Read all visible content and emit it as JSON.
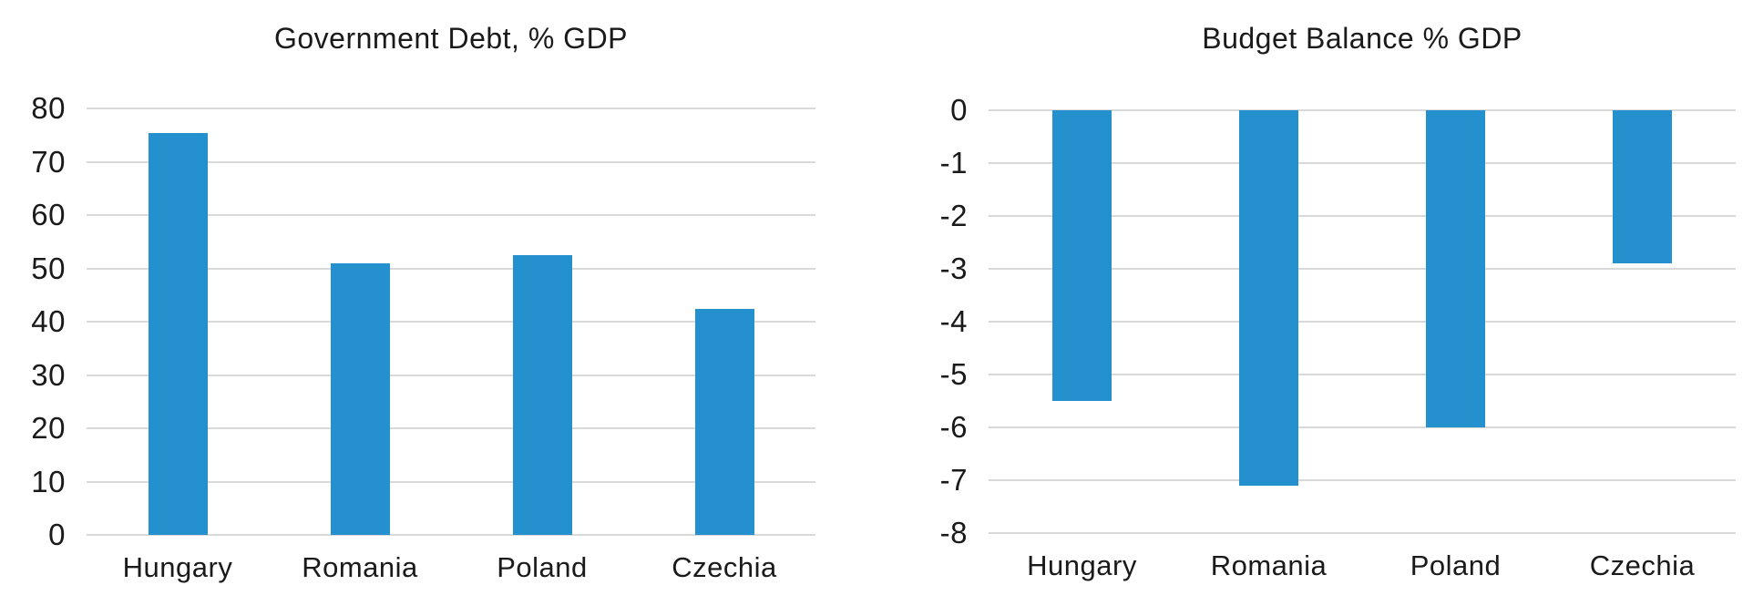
{
  "colors": {
    "bar": "#2590CE",
    "gridline": "#D9D9D9",
    "text": "#1A1A1A",
    "background": "#FFFFFF"
  },
  "chart_data": [
    {
      "type": "bar",
      "title": "Government Debt, % GDP",
      "categories": [
        "Hungary",
        "Romania",
        "Poland",
        "Czechia"
      ],
      "values": [
        75.3,
        51.0,
        52.5,
        42.4
      ],
      "xlabel": "",
      "ylabel": "",
      "ylim": [
        0,
        80
      ],
      "yticks": [
        0,
        10,
        20,
        30,
        40,
        50,
        60,
        70,
        80
      ],
      "grid": true,
      "legend": "none",
      "bar_color": "#2590CE"
    },
    {
      "type": "bar",
      "title": "Budget Balance % GDP",
      "categories": [
        "Hungary",
        "Romania",
        "Poland",
        "Czechia"
      ],
      "values": [
        -5.5,
        -7.1,
        -6.0,
        -2.9
      ],
      "xlabel": "",
      "ylabel": "",
      "ylim": [
        -8,
        0
      ],
      "yticks": [
        0,
        -1,
        -2,
        -3,
        -4,
        -5,
        -6,
        -7,
        -8
      ],
      "grid": true,
      "legend": "none",
      "bar_color": "#2590CE"
    }
  ]
}
